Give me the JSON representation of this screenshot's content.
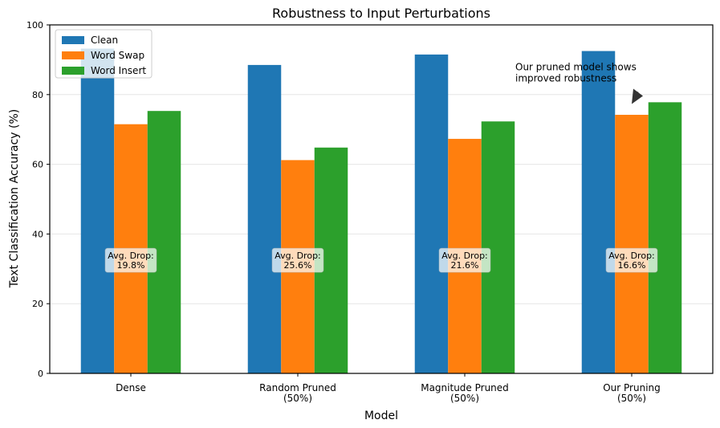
{
  "chart_data": {
    "type": "bar",
    "title": "Robustness to Input Perturbations",
    "xlabel": "Model",
    "ylabel": "Text Classification Accuracy (%)",
    "ylim": [
      0,
      100
    ],
    "yticks": [
      0,
      20,
      40,
      60,
      80,
      100
    ],
    "grid": true,
    "legend_position": "top-left",
    "categories": [
      [
        "Dense"
      ],
      [
        "Random Pruned",
        "(50%)"
      ],
      [
        "Magnitude Pruned",
        "(50%)"
      ],
      [
        "Our Pruning",
        "(50%)"
      ]
    ],
    "series": [
      {
        "name": "Clean",
        "color": "#1f77b4",
        "values": [
          93.2,
          88.5,
          91.5,
          92.5
        ]
      },
      {
        "name": "Word Swap",
        "color": "#ff7f0e",
        "values": [
          71.5,
          61.2,
          67.3,
          74.2
        ]
      },
      {
        "name": "Word Insert",
        "color": "#2ca02c",
        "values": [
          75.3,
          64.8,
          72.3,
          77.8
        ]
      }
    ],
    "drop_labels": {
      "y": 32,
      "items": [
        [
          "Avg. Drop:",
          "19.8%"
        ],
        [
          "Avg. Drop:",
          "25.6%"
        ],
        [
          "Avg. Drop:",
          "21.6%"
        ],
        [
          "Avg. Drop:",
          "16.6%"
        ]
      ]
    },
    "annotation": {
      "lines": [
        "Our pruned model shows",
        "improved robustness"
      ],
      "category_index": 3,
      "point_y": 78,
      "text_y": 87
    }
  }
}
